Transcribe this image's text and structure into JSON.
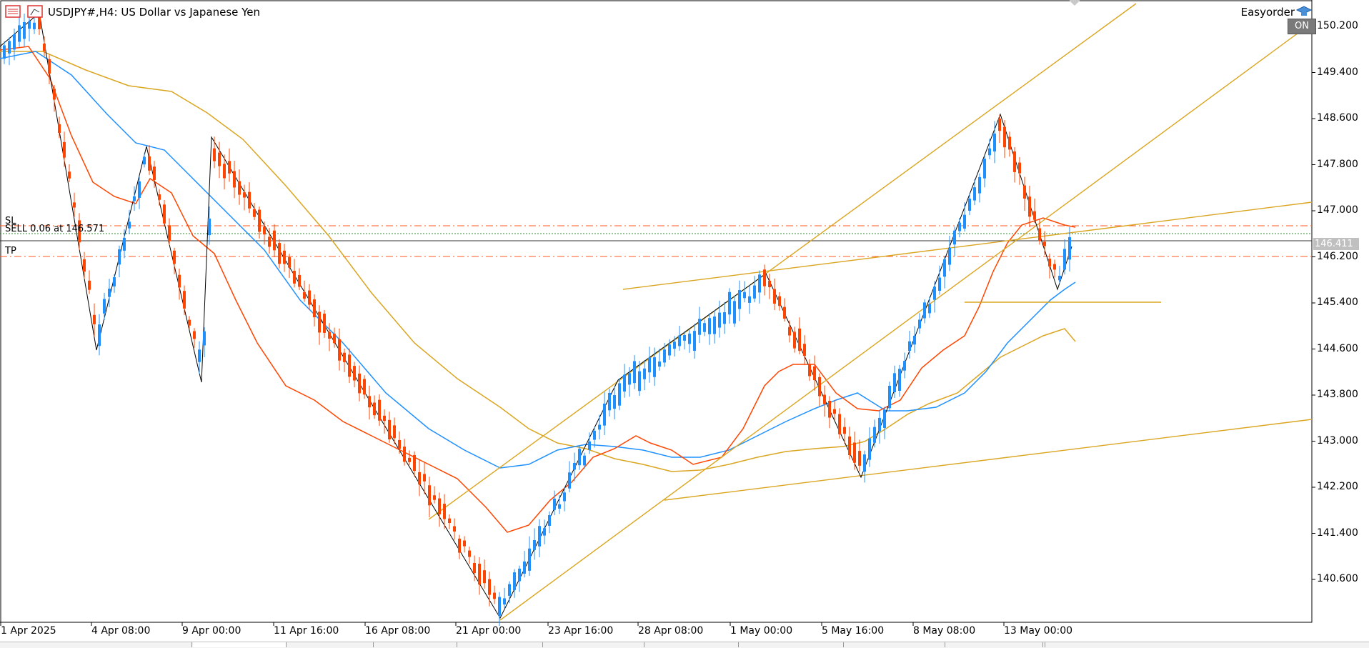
{
  "chart": {
    "title": "USDJPY#,H4:  US Dollar vs Japanese Yen",
    "symbol": "USDJPY#",
    "timeframe": "H4",
    "description": "US Dollar vs Japanese Yen",
    "expert": {
      "name": "Easyorder",
      "status": "ON"
    },
    "price_axis": {
      "labels": [
        "150.200",
        "149.400",
        "148.600",
        "147.800",
        "147.000",
        "146.200",
        "145.400",
        "144.600",
        "143.800",
        "143.000",
        "142.200",
        "141.400",
        "140.600"
      ],
      "current_price": "146.411"
    },
    "time_axis": {
      "labels": [
        "1 Apr 2025",
        "4 Apr 08:00",
        "9 Apr 00:00",
        "11 Apr 16:00",
        "16 Apr 08:00",
        "21 Apr 00:00",
        "23 Apr 16:00",
        "28 Apr 08:00",
        "1 May 00:00",
        "5 May 16:00",
        "8 May 08:00",
        "13 May 00:00"
      ]
    },
    "trade_lines": {
      "sl": {
        "label": "SL",
        "color": "#ff5722"
      },
      "entry": {
        "label": "SELL 0.06 at 146.571",
        "color": "#2e8b2e"
      },
      "tp": {
        "label": "TP",
        "color": "#ff5722"
      },
      "bid_color": "#000000"
    },
    "colors": {
      "bull_candle": "#1e90ff",
      "bear_candle": "#ff4500",
      "ma_fast": "#ff4500",
      "ma_mid": "#1e90ff",
      "ma_slow": "#daa520",
      "trendline": "#daa520",
      "zigzag": "#000000",
      "axis_badge": "#c0c0c0"
    }
  }
}
